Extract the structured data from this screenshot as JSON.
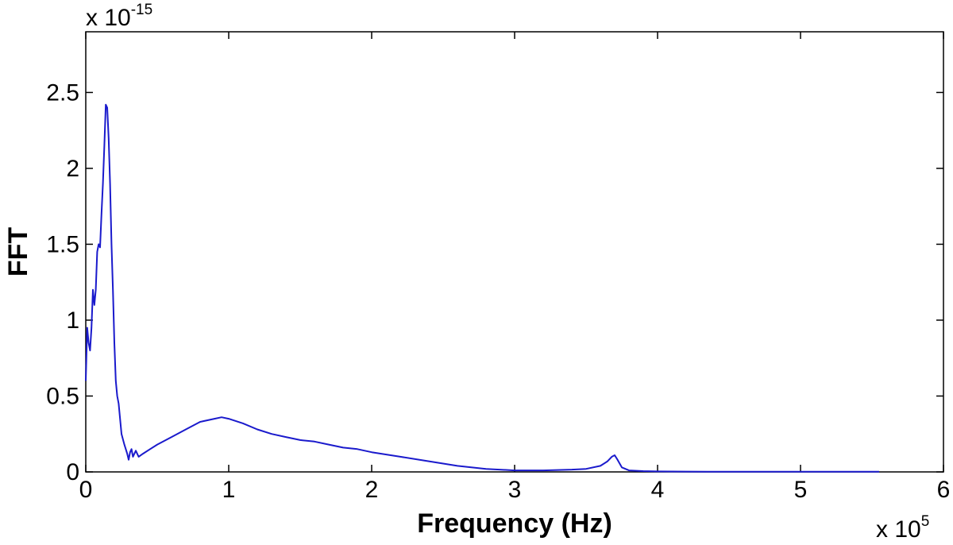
{
  "chart_data": {
    "type": "line",
    "title": "",
    "xlabel": "Frequency (Hz)",
    "ylabel": "FFT",
    "x_multiplier_label": {
      "base": "x 10",
      "exponent": "5"
    },
    "y_multiplier_label": {
      "base": "x 10",
      "exponent": "-15"
    },
    "xlim": [
      0,
      6
    ],
    "ylim": [
      0,
      2.9
    ],
    "xticks": [
      0,
      1,
      2,
      3,
      4,
      5,
      6
    ],
    "xtick_labels": [
      "0",
      "1",
      "2",
      "3",
      "4",
      "5",
      "6"
    ],
    "yticks": [
      0,
      0.5,
      1,
      1.5,
      2,
      2.5
    ],
    "ytick_labels": [
      "0",
      "0.5",
      "1",
      "1.5",
      "2",
      "2.5"
    ],
    "grid": false,
    "legend": "none",
    "line_color": "#1a1acc",
    "series": [
      {
        "x": [
          0,
          0.01,
          0.02,
          0.03,
          0.04,
          0.05,
          0.06,
          0.07,
          0.08,
          0.09,
          0.1,
          0.11,
          0.12,
          0.13,
          0.14,
          0.15,
          0.16,
          0.17,
          0.18,
          0.19,
          0.2,
          0.21,
          0.22,
          0.23,
          0.24,
          0.25,
          0.27,
          0.29,
          0.3,
          0.31,
          0.32,
          0.33,
          0.35,
          0.37,
          0.4,
          0.45,
          0.5,
          0.6,
          0.7,
          0.8,
          0.9,
          0.95,
          1.0,
          1.1,
          1.2,
          1.3,
          1.4,
          1.5,
          1.6,
          1.7,
          1.8,
          1.9,
          2.0,
          2.2,
          2.4,
          2.6,
          2.8,
          3.0,
          3.2,
          3.4,
          3.5,
          3.6,
          3.65,
          3.68,
          3.7,
          3.72,
          3.75,
          3.8,
          3.9,
          4.0,
          4.2,
          4.5,
          5.0,
          5.55
        ],
        "y": [
          0.6,
          0.95,
          0.85,
          0.8,
          0.95,
          1.2,
          1.1,
          1.2,
          1.45,
          1.5,
          1.48,
          1.7,
          1.9,
          2.15,
          2.42,
          2.4,
          2.2,
          1.9,
          1.5,
          1.2,
          0.85,
          0.6,
          0.5,
          0.45,
          0.35,
          0.25,
          0.18,
          0.12,
          0.08,
          0.13,
          0.15,
          0.1,
          0.14,
          0.1,
          0.12,
          0.15,
          0.18,
          0.23,
          0.28,
          0.33,
          0.35,
          0.36,
          0.35,
          0.32,
          0.28,
          0.25,
          0.23,
          0.21,
          0.2,
          0.18,
          0.16,
          0.15,
          0.13,
          0.1,
          0.07,
          0.04,
          0.02,
          0.01,
          0.01,
          0.015,
          0.02,
          0.04,
          0.07,
          0.1,
          0.11,
          0.08,
          0.03,
          0.01,
          0.005,
          0.003,
          0.002,
          0.001,
          0.001,
          0.001
        ]
      }
    ]
  }
}
